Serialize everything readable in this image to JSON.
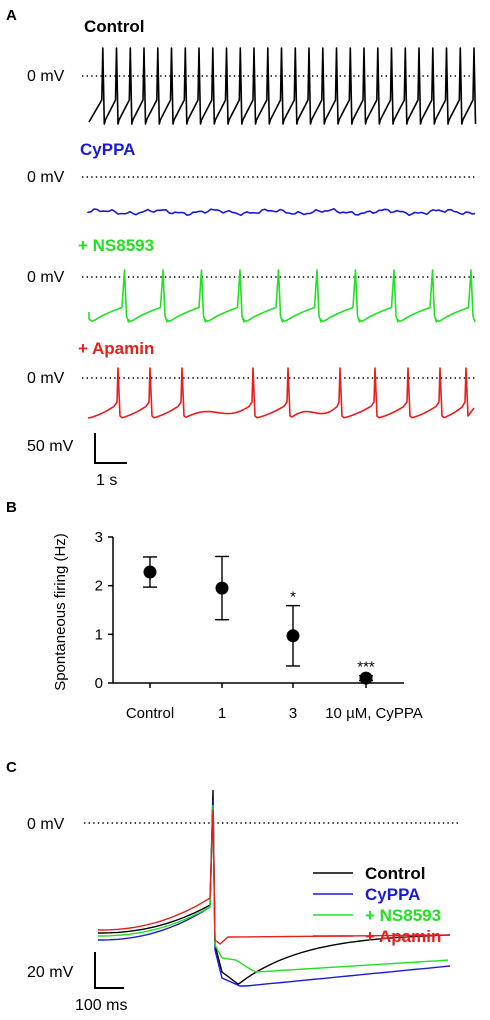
{
  "panels": {
    "a": "A",
    "b": "B",
    "c": "C"
  },
  "panel_a": {
    "zero_label": "0 mV",
    "scale_y_label": "50 mV",
    "scale_x_label": "1 s",
    "traces": [
      {
        "label": "Control",
        "color": "#000000",
        "spike_count": 28
      },
      {
        "label": "CyPPA",
        "color": "#1a1adb",
        "spike_count": 0
      },
      {
        "label": "+ NS8593",
        "color": "#22e022",
        "spike_count": 10
      },
      {
        "label": "+ Apamin",
        "color": "#e61e1e",
        "spike_count": 10
      }
    ]
  },
  "chart_data": {
    "type": "scatter",
    "ylabel": "Spontaneous firing (Hz)",
    "xlabel": "",
    "categories": [
      "Control",
      "1",
      "3",
      "10 µM, CyPPA"
    ],
    "values": [
      2.28,
      1.95,
      0.97,
      0.1
    ],
    "error": [
      0.31,
      0.65,
      0.62,
      0.05
    ],
    "significance": [
      "",
      "",
      "*",
      "***"
    ],
    "ylim": [
      0,
      3
    ],
    "yticks": [
      "0",
      "1",
      "2",
      "3"
    ],
    "marker_color": "#000000"
  },
  "panel_c": {
    "zero_label": "0 mV",
    "scale_y_label": "20 mV",
    "scale_x_label": "100 ms",
    "legend": [
      {
        "label": "Control",
        "color": "#000000"
      },
      {
        "label": "CyPPA",
        "color": "#1a1adb"
      },
      {
        "label": "+ NS8593",
        "color": "#22e022"
      },
      {
        "label": "+ Apamin",
        "color": "#e61e1e"
      }
    ]
  }
}
